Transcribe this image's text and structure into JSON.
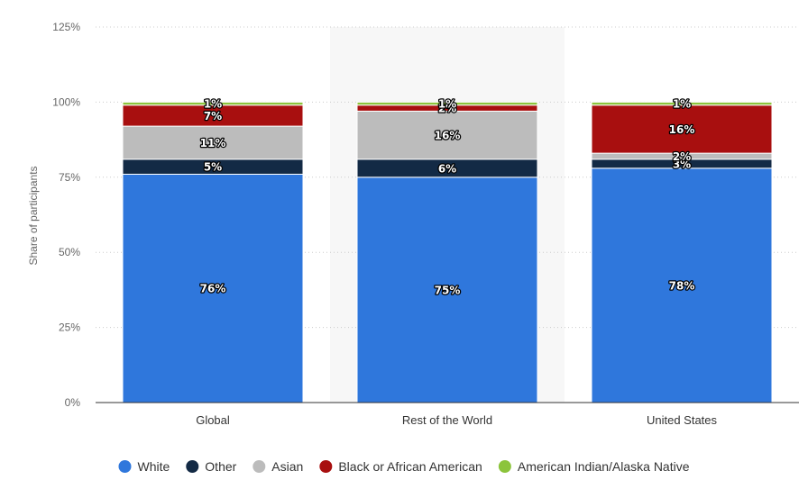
{
  "chart_data": {
    "type": "bar",
    "stacked": true,
    "categories": [
      "Global",
      "Rest of the World",
      "United States"
    ],
    "ylabel": "Share of participants",
    "ylim": [
      0,
      125
    ],
    "yticks": [
      "0%",
      "25%",
      "50%",
      "75%",
      "100%",
      "125%"
    ],
    "grid": true,
    "legend_position": "bottom",
    "highlighted_category": "Rest of the World",
    "series": [
      {
        "name": "White",
        "color": "#2f77dc",
        "values": [
          76,
          75,
          78
        ],
        "labels": [
          "76%",
          "75%",
          "78%"
        ]
      },
      {
        "name": "Other",
        "color": "#132a45",
        "values": [
          5,
          6,
          3
        ],
        "labels": [
          "5%",
          "6%",
          "3%"
        ]
      },
      {
        "name": "Asian",
        "color": "#bcbcbc",
        "values": [
          11,
          16,
          2
        ],
        "labels": [
          "11%",
          "16%",
          "2%"
        ]
      },
      {
        "name": "Black or African American",
        "color": "#a80f0f",
        "values": [
          7,
          2,
          16
        ],
        "labels": [
          "7%",
          "2%",
          "16%"
        ]
      },
      {
        "name": "American Indian/Alaska Native",
        "color": "#8cc43c",
        "values": [
          1,
          1,
          1
        ],
        "labels": [
          "1%",
          "1%",
          "1%"
        ]
      }
    ]
  }
}
